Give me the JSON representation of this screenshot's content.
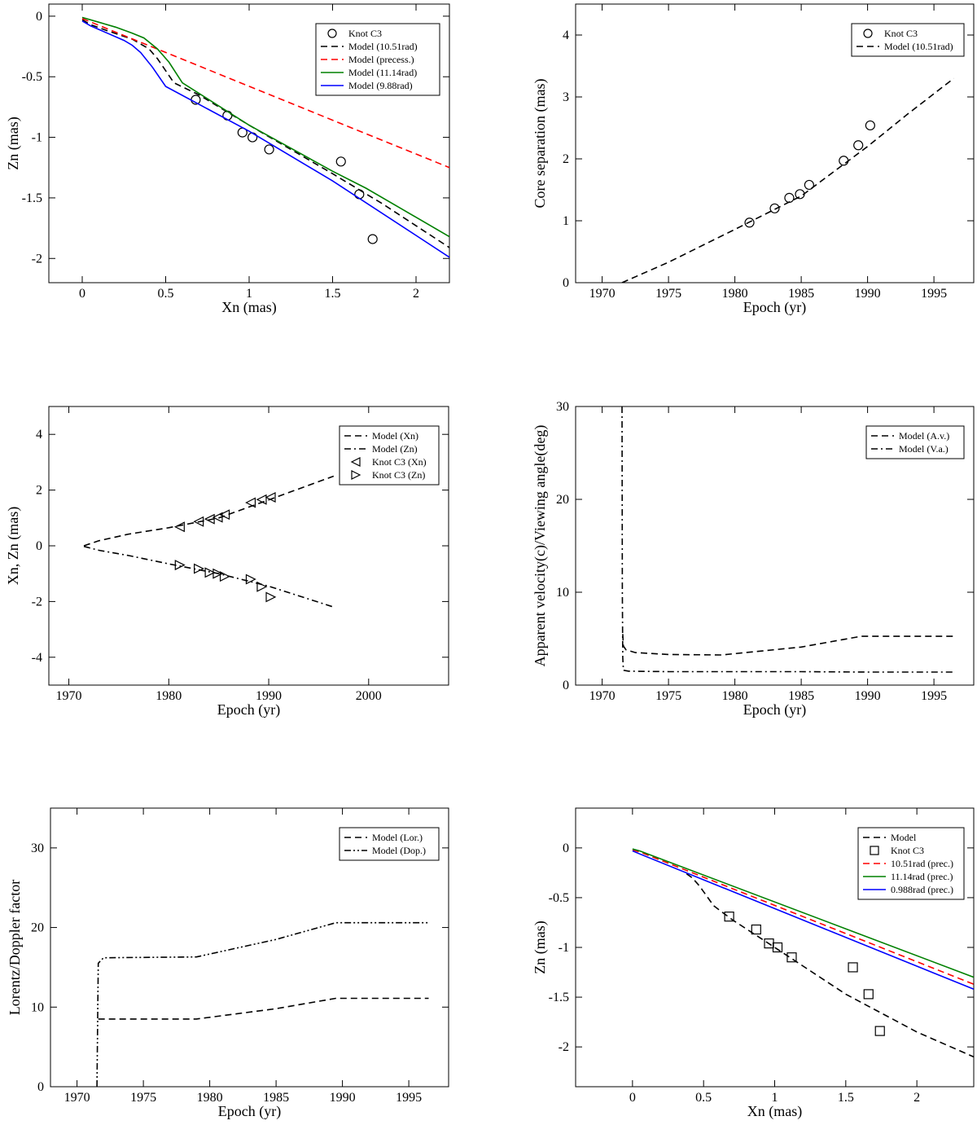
{
  "chart_data": [
    {
      "type": "line",
      "xlabel": "Xn (mas)",
      "ylabel": "Zn (mas)",
      "xlim": [
        -0.2,
        2.2
      ],
      "ylim": [
        -2.2,
        0.1
      ],
      "xticks": [
        0,
        0.5,
        1,
        1.5,
        2
      ],
      "xtick_labels": [
        "0",
        "0.5",
        "1",
        "1.5",
        "2"
      ],
      "yticks": [
        0,
        -0.5,
        -1,
        -1.5,
        -2
      ],
      "ytick_labels": [
        "0",
        "-0.5",
        "-1",
        "-1.5",
        "-2"
      ],
      "grid": false,
      "legend_position": "top-right",
      "series": [
        {
          "name": "Knot C3",
          "marker": "circle",
          "color": "#000000",
          "x": [
            0.68,
            0.87,
            0.96,
            1.02,
            1.12,
            1.55,
            1.66,
            1.74
          ],
          "y": [
            -0.69,
            -0.82,
            -0.96,
            -1.0,
            -1.1,
            -1.2,
            -1.47,
            -1.84
          ]
        },
        {
          "name": "Model (10.51rad)",
          "dash": "dashed",
          "color": "#000000",
          "x": [
            0,
            0.05,
            0.15,
            0.3,
            0.4,
            0.45,
            0.5,
            0.55,
            0.7,
            1.0,
            1.5,
            1.8,
            2.2
          ],
          "y": [
            -0.03,
            -0.07,
            -0.12,
            -0.19,
            -0.27,
            -0.35,
            -0.45,
            -0.55,
            -0.65,
            -0.9,
            -1.3,
            -1.55,
            -1.91
          ]
        },
        {
          "name": "Model (precess.)",
          "dash": "dashed",
          "color": "#ff0000",
          "x": [
            0,
            2.2
          ],
          "y": [
            -0.02,
            -1.25
          ]
        },
        {
          "name": "Model (11.14rad)",
          "dash": "solid",
          "color": "#008000",
          "x": [
            0,
            0.1,
            0.2,
            0.3,
            0.37,
            0.45,
            0.52,
            0.6,
            1.0,
            1.5,
            1.7,
            2.2
          ],
          "y": [
            -0.01,
            -0.05,
            -0.09,
            -0.14,
            -0.18,
            -0.27,
            -0.38,
            -0.55,
            -0.9,
            -1.28,
            -1.42,
            -1.82
          ]
        },
        {
          "name": "Model (9.88rad)",
          "dash": "solid",
          "color": "#0000ff",
          "x": [
            0,
            0.05,
            0.15,
            0.25,
            0.3,
            0.35,
            0.42,
            0.5,
            1.0,
            1.5,
            2.0,
            2.2
          ],
          "y": [
            -0.04,
            -0.08,
            -0.14,
            -0.2,
            -0.24,
            -0.3,
            -0.42,
            -0.58,
            -0.95,
            -1.36,
            -1.81,
            -1.99
          ]
        }
      ]
    },
    {
      "type": "line",
      "xlabel": "Epoch (yr)",
      "ylabel": "Core separation (mas)",
      "xlim": [
        1968,
        1998
      ],
      "ylim": [
        0,
        4.5
      ],
      "xticks": [
        1970,
        1975,
        1980,
        1985,
        1990,
        1995
      ],
      "xtick_labels": [
        "1970",
        "1975",
        "1980",
        "1985",
        "1990",
        "1995"
      ],
      "yticks": [
        0,
        1,
        2,
        3,
        4
      ],
      "ytick_labels": [
        "0",
        "1",
        "2",
        "3",
        "4"
      ],
      "grid": false,
      "legend_position": "top-right",
      "series": [
        {
          "name": "Knot C3",
          "marker": "circle",
          "color": "#000000",
          "x": [
            1981.1,
            1983.0,
            1984.1,
            1984.9,
            1985.6,
            1988.2,
            1989.3,
            1990.2
          ],
          "y": [
            0.97,
            1.2,
            1.37,
            1.43,
            1.58,
            1.97,
            2.22,
            2.54
          ]
        },
        {
          "name": "Model (10.51rad)",
          "dash": "dashed",
          "color": "#000000",
          "x": [
            1971.5,
            1975,
            1980,
            1985,
            1990,
            1993,
            1996.5
          ],
          "y": [
            0.0,
            0.33,
            0.86,
            1.4,
            2.2,
            2.72,
            3.3
          ]
        }
      ]
    },
    {
      "type": "line",
      "xlabel": "Epoch (yr)",
      "ylabel": "Xn, Zn (mas)",
      "xlim": [
        1968,
        2008
      ],
      "ylim": [
        -5,
        5
      ],
      "xticks": [
        1970,
        1980,
        1990,
        2000
      ],
      "xtick_labels": [
        "1970",
        "1980",
        "1990",
        "2000"
      ],
      "yticks": [
        -4,
        -2,
        0,
        2,
        4
      ],
      "ytick_labels": [
        "-4",
        "-2",
        "0",
        "2",
        "4"
      ],
      "grid": false,
      "legend_position": "top-right",
      "series": [
        {
          "name": "Model (Xn)",
          "dash": "dashed",
          "color": "#000000",
          "x": [
            1971.5,
            1973,
            1976,
            1980,
            1985,
            1990,
            1996.5
          ],
          "y": [
            0.0,
            0.18,
            0.42,
            0.65,
            1.0,
            1.65,
            2.5
          ]
        },
        {
          "name": "Model (Zn)",
          "dash": "dashdot",
          "color": "#000000",
          "x": [
            1971.5,
            1973,
            1976,
            1980,
            1985,
            1990,
            1996.5
          ],
          "y": [
            -0.02,
            -0.16,
            -0.35,
            -0.65,
            -1.0,
            -1.45,
            -2.2
          ]
        },
        {
          "name": "Knot C3 (Xn)",
          "marker": "triangle-left",
          "color": "#000000",
          "x": [
            1981.1,
            1983.0,
            1984.1,
            1984.9,
            1985.6,
            1988.2,
            1989.3,
            1990.2
          ],
          "y": [
            0.68,
            0.87,
            0.96,
            1.02,
            1.12,
            1.55,
            1.66,
            1.74
          ]
        },
        {
          "name": "Knot C3 (Zn)",
          "marker": "triangle-right",
          "color": "#000000",
          "x": [
            1981.1,
            1983.0,
            1984.1,
            1984.9,
            1985.6,
            1988.2,
            1989.3,
            1990.2
          ],
          "y": [
            -0.69,
            -0.82,
            -0.96,
            -1.0,
            -1.1,
            -1.2,
            -1.47,
            -1.84
          ]
        }
      ]
    },
    {
      "type": "line",
      "xlabel": "Epoch (yr)",
      "ylabel": "Apparent velocity(c)/Viewing angle(deg)",
      "xlim": [
        1968,
        1998
      ],
      "ylim": [
        0,
        30
      ],
      "xticks": [
        1970,
        1975,
        1980,
        1985,
        1990,
        1995
      ],
      "xtick_labels": [
        "1970",
        "1975",
        "1980",
        "1985",
        "1990",
        "1995"
      ],
      "yticks": [
        0,
        10,
        20,
        30
      ],
      "ytick_labels": [
        "0",
        "10",
        "20",
        "30"
      ],
      "grid": false,
      "legend_position": "top-right",
      "series": [
        {
          "name": "Model (A.v.)",
          "dash": "dashed",
          "color": "#000000",
          "x": [
            1971.55,
            1971.6,
            1971.8,
            1972.5,
            1975,
            1979,
            1985,
            1989.5,
            1996.5
          ],
          "y": [
            5.5,
            4.2,
            3.8,
            3.5,
            3.3,
            3.25,
            4.1,
            5.25,
            5.25
          ]
        },
        {
          "name": "Model (V.a.)",
          "dash": "dashdot",
          "color": "#000000",
          "x": [
            1971.5,
            1971.52,
            1971.55,
            1971.6,
            1972,
            1975,
            1980,
            1985,
            1990,
            1996.5
          ],
          "y": [
            30,
            10,
            3,
            1.6,
            1.5,
            1.45,
            1.45,
            1.45,
            1.4,
            1.4
          ]
        }
      ]
    },
    {
      "type": "line",
      "xlabel": "Epoch (yr)",
      "ylabel": "Lorentz/Doppler factor",
      "xlim": [
        1968,
        1998
      ],
      "ylim": [
        0,
        35
      ],
      "xticks": [
        1970,
        1975,
        1980,
        1985,
        1990,
        1995
      ],
      "xtick_labels": [
        "1970",
        "1975",
        "1980",
        "1985",
        "1990",
        "1995"
      ],
      "yticks": [
        0,
        10,
        20,
        30
      ],
      "ytick_labels": [
        "0",
        "10",
        "20",
        "30"
      ],
      "grid": false,
      "legend_position": "top-right",
      "series": [
        {
          "name": "Model (Lor.)",
          "dash": "dashed",
          "color": "#000000",
          "x": [
            1971.6,
            1979,
            1985,
            1989.5,
            1996.5
          ],
          "y": [
            8.5,
            8.5,
            9.8,
            11.1,
            11.1
          ]
        },
        {
          "name": "Model (Dop.)",
          "dash": "dashdotdot",
          "color": "#000000",
          "x": [
            1971.5,
            1971.55,
            1971.6,
            1972,
            1979,
            1985,
            1989.5,
            1996.5
          ],
          "y": [
            0,
            8,
            15.5,
            16.2,
            16.3,
            18.5,
            20.6,
            20.6
          ]
        }
      ]
    },
    {
      "type": "line",
      "xlabel": "Xn (mas)",
      "ylabel": "Zn (mas)",
      "xlim": [
        -0.4,
        2.4
      ],
      "ylim": [
        -2.4,
        0.4
      ],
      "xticks": [
        0,
        0.5,
        1,
        1.5,
        2
      ],
      "xtick_labels": [
        "0",
        "0.5",
        "1",
        "1.5",
        "2"
      ],
      "yticks": [
        0,
        -0.5,
        -1,
        -1.5,
        -2
      ],
      "ytick_labels": [
        "0",
        "-0.5",
        "-1",
        "-1.5",
        "-2"
      ],
      "grid": false,
      "legend_position": "top-right",
      "series": [
        {
          "name": "Model",
          "dash": "dashed",
          "color": "#000000",
          "x": [
            0.38,
            0.42,
            0.47,
            0.52,
            0.57,
            0.7,
            1.0,
            1.5,
            2.0,
            2.4
          ],
          "y": [
            -0.26,
            -0.3,
            -0.38,
            -0.48,
            -0.58,
            -0.72,
            -1.0,
            -1.47,
            -1.85,
            -2.1
          ]
        },
        {
          "name": "Knot C3",
          "marker": "square",
          "color": "#000000",
          "x": [
            0.68,
            0.87,
            0.96,
            1.02,
            1.12,
            1.55,
            1.66,
            1.74
          ],
          "y": [
            -0.69,
            -0.82,
            -0.96,
            -1.0,
            -1.1,
            -1.2,
            -1.47,
            -1.84
          ]
        },
        {
          "name": "10.51rad (prec.)",
          "dash": "dashed",
          "color": "#ff0000",
          "x": [
            0,
            0.05,
            2.4
          ],
          "y": [
            -0.02,
            -0.04,
            -1.37
          ]
        },
        {
          "name": "11.14rad (prec.)",
          "dash": "solid",
          "color": "#008000",
          "x": [
            0,
            0.05,
            2.4
          ],
          "y": [
            -0.01,
            -0.03,
            -1.3
          ]
        },
        {
          "name": "0.988rad (prec.)",
          "dash": "solid",
          "color": "#0000ff",
          "x": [
            0,
            0.05,
            2.4
          ],
          "y": [
            -0.03,
            -0.06,
            -1.42
          ]
        }
      ]
    }
  ]
}
